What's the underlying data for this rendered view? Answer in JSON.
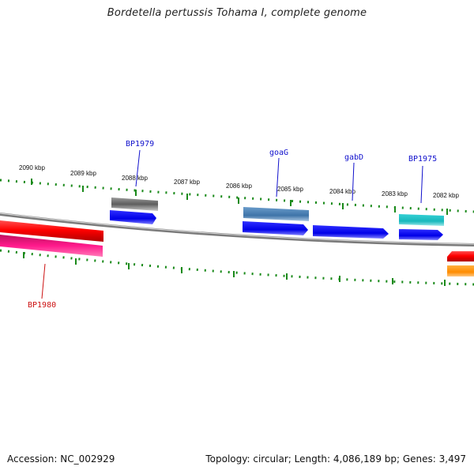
{
  "title": "Bordetella pertussis Tohama I, complete genome",
  "footer": {
    "accession": "Accession: NC_002929",
    "summary": "Topology: circular; Length: 4,086,189 bp; Genes: 3,497"
  },
  "ruler_labels": [
    "2090 kbp",
    "2089 kbp",
    "2088 kbp",
    "2087 kbp",
    "2086 kbp",
    "2085 kbp",
    "2084 kbp",
    "2083 kbp",
    "2082 kbp"
  ],
  "gene_labels": {
    "bp1979": "BP1979",
    "goag": "goaG",
    "gabd": "gabD",
    "bp1975": "BP1975",
    "bp1980": "BP1980"
  },
  "colors": {
    "backbone": "#8a8a8a",
    "ticks": "#1a8a1a",
    "label_blue": "#1010cc",
    "label_red": "#cc1010",
    "gene_red": "#ff0000",
    "gene_pink": "#ff1a8c",
    "gene_gray": "#6e6e6e",
    "gene_blue": "#0a0af0",
    "gene_steelblue": "#4a7fb0",
    "gene_cyan": "#20c4c8",
    "gene_orange": "#ff8c00"
  }
}
